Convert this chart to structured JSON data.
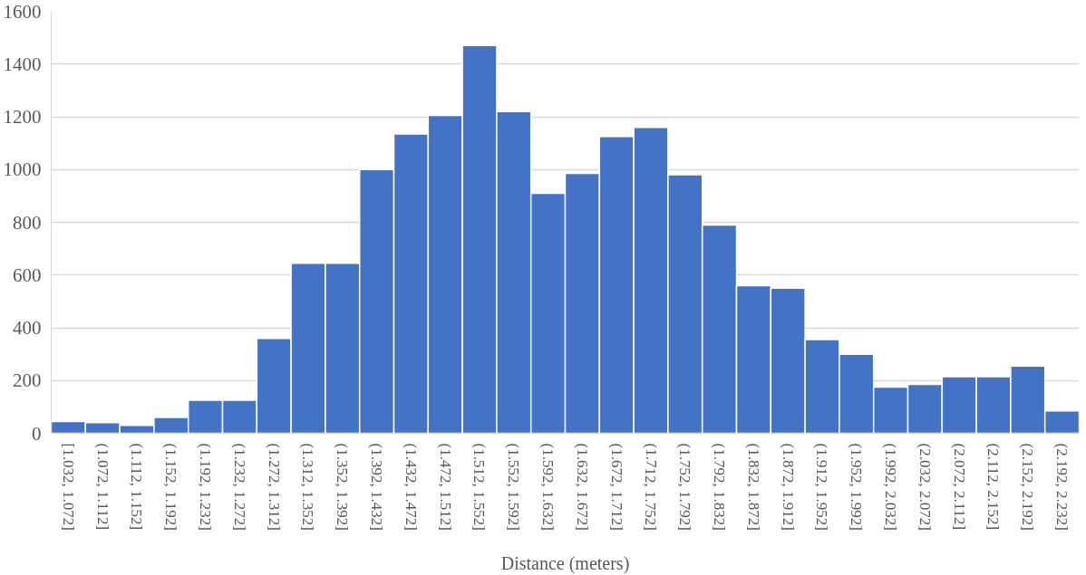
{
  "chart_data": {
    "type": "bar",
    "xlabel": "Distance (meters)",
    "categories": [
      "[1.032, 1.072]",
      "(1.072, 1.112]",
      "(1.112, 1.152]",
      "(1.152, 1.192]",
      "(1.192, 1.232]",
      "(1.232, 1.272]",
      "(1.272, 1.312]",
      "(1.312, 1.352]",
      "(1.352, 1.392]",
      "(1.392, 1.432]",
      "(1.432, 1.472]",
      "(1.472, 1.512]",
      "(1.512, 1.552]",
      "(1.552, 1.592]",
      "(1.592, 1.632]",
      "(1.632, 1.672]",
      "(1.672, 1.712]",
      "(1.712, 1.752]",
      "(1.752, 1.792]",
      "(1.792, 1.832]",
      "(1.832, 1.872]",
      "(1.872, 1.912]",
      "(1.912, 1.952]",
      "(1.952, 1.992]",
      "(1.992, 2.032]",
      "(2.032, 2.072]",
      "(2.072, 2.112]",
      "(2.112, 2.152]",
      "(2.152, 2.192]",
      "(2.192, 2.232]"
    ],
    "values": [
      45,
      40,
      30,
      60,
      125,
      125,
      360,
      645,
      645,
      1000,
      1135,
      1205,
      1470,
      1220,
      910,
      985,
      1125,
      1160,
      980,
      790,
      560,
      550,
      355,
      300,
      175,
      185,
      215,
      215,
      255,
      85
    ],
    "color": "#4472c4",
    "ylim": [
      0,
      1600
    ],
    "yticks": [
      0,
      200,
      400,
      600,
      800,
      1000,
      1200,
      1400,
      1600
    ],
    "grid": "y"
  }
}
